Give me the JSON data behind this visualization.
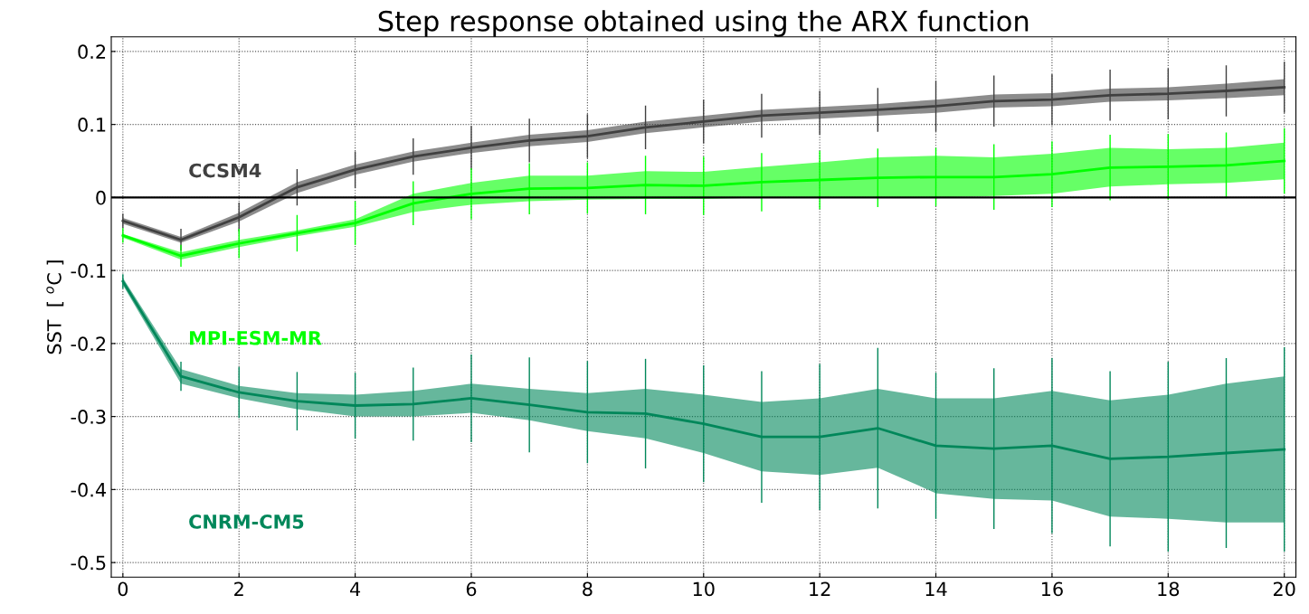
{
  "chart_data": {
    "type": "line",
    "title": "Step response obtained using the ARX function",
    "ylabel": "SST  [ $^{o}$C ]",
    "x": [
      0,
      1,
      2,
      3,
      4,
      5,
      6,
      7,
      8,
      9,
      10,
      11,
      12,
      13,
      14,
      15,
      16,
      17,
      18,
      19,
      20
    ],
    "xlim": [
      -0.2,
      20.2
    ],
    "ylim": [
      -0.52,
      0.22
    ],
    "xticks": [
      0,
      2,
      4,
      6,
      8,
      10,
      12,
      14,
      16,
      18,
      20
    ],
    "yticks": [
      {
        "value": -0.5,
        "label": "-0.5"
      },
      {
        "value": -0.4,
        "label": "-0.4"
      },
      {
        "value": -0.3,
        "label": "-0.3"
      },
      {
        "value": -0.2,
        "label": "-0.2"
      },
      {
        "value": -0.1,
        "label": "-0.1"
      },
      0,
      0.1,
      0.2
    ],
    "grid": true,
    "legend": false,
    "ref_lines": [
      {
        "axis": "y",
        "value": 0,
        "color": "#000000",
        "line_style": "solid"
      }
    ],
    "series": [
      {
        "name": "CCSM4",
        "color": "#404040",
        "values": [
          -0.032,
          -0.058,
          -0.027,
          0.014,
          0.038,
          0.056,
          0.068,
          0.078,
          0.084,
          0.096,
          0.104,
          0.112,
          0.116,
          0.12,
          0.125,
          0.132,
          0.134,
          0.14,
          0.142,
          0.146,
          0.151
        ],
        "lower": [
          -0.036,
          -0.062,
          -0.033,
          0.006,
          0.031,
          0.049,
          0.061,
          0.07,
          0.076,
          0.088,
          0.096,
          0.104,
          0.108,
          0.112,
          0.116,
          0.123,
          0.125,
          0.131,
          0.133,
          0.136,
          0.14
        ],
        "upper": [
          -0.028,
          -0.054,
          -0.021,
          0.021,
          0.045,
          0.063,
          0.075,
          0.086,
          0.092,
          0.104,
          0.112,
          0.12,
          0.124,
          0.128,
          0.134,
          0.141,
          0.143,
          0.149,
          0.151,
          0.156,
          0.162
        ],
        "errors": [
          0.01,
          0.015,
          0.02,
          0.025,
          0.025,
          0.025,
          0.03,
          0.03,
          0.03,
          0.03,
          0.03,
          0.03,
          0.03,
          0.03,
          0.035,
          0.035,
          0.035,
          0.035,
          0.035,
          0.035,
          0.035
        ]
      },
      {
        "name": "MPI-ESM-MR",
        "color": "#00ff00",
        "values": [
          -0.052,
          -0.08,
          -0.063,
          -0.049,
          -0.035,
          -0.008,
          0.005,
          0.012,
          0.013,
          0.017,
          0.016,
          0.021,
          0.024,
          0.027,
          0.028,
          0.028,
          0.032,
          0.041,
          0.042,
          0.044,
          0.05
        ],
        "lower": [
          -0.055,
          -0.085,
          -0.068,
          -0.053,
          -0.04,
          -0.02,
          -0.01,
          -0.005,
          -0.003,
          -0.002,
          -0.002,
          0,
          0,
          0,
          0,
          0.002,
          0.005,
          0.015,
          0.018,
          0.02,
          0.025
        ],
        "upper": [
          -0.05,
          -0.075,
          -0.058,
          -0.045,
          -0.03,
          0.005,
          0.02,
          0.03,
          0.03,
          0.036,
          0.035,
          0.042,
          0.048,
          0.055,
          0.057,
          0.055,
          0.06,
          0.068,
          0.066,
          0.068,
          0.075
        ],
        "errors": [
          0.01,
          0.015,
          0.02,
          0.025,
          0.03,
          0.03,
          0.035,
          0.035,
          0.035,
          0.04,
          0.04,
          0.04,
          0.04,
          0.04,
          0.04,
          0.045,
          0.045,
          0.045,
          0.045,
          0.045,
          0.045
        ]
      },
      {
        "name": "CNRM-CM5",
        "color": "#00875a",
        "values": [
          -0.115,
          -0.245,
          -0.267,
          -0.279,
          -0.285,
          -0.283,
          -0.275,
          -0.284,
          -0.294,
          -0.296,
          -0.31,
          -0.328,
          -0.328,
          -0.316,
          -0.34,
          -0.344,
          -0.34,
          -0.358,
          -0.355,
          -0.35,
          -0.345
        ],
        "lower": [
          -0.12,
          -0.255,
          -0.275,
          -0.29,
          -0.3,
          -0.3,
          -0.295,
          -0.305,
          -0.32,
          -0.33,
          -0.35,
          -0.375,
          -0.38,
          -0.37,
          -0.405,
          -0.413,
          -0.415,
          -0.437,
          -0.44,
          -0.445,
          -0.445
        ],
        "upper": [
          -0.11,
          -0.235,
          -0.258,
          -0.268,
          -0.27,
          -0.265,
          -0.255,
          -0.262,
          -0.268,
          -0.262,
          -0.27,
          -0.28,
          -0.275,
          -0.262,
          -0.275,
          -0.275,
          -0.265,
          -0.278,
          -0.27,
          -0.255,
          -0.245
        ],
        "errors": [
          0.01,
          0.02,
          0.035,
          0.04,
          0.045,
          0.05,
          0.06,
          0.065,
          0.07,
          0.075,
          0.08,
          0.09,
          0.1,
          0.11,
          0.1,
          0.11,
          0.12,
          0.12,
          0.13,
          0.13,
          0.14
        ]
      }
    ]
  }
}
